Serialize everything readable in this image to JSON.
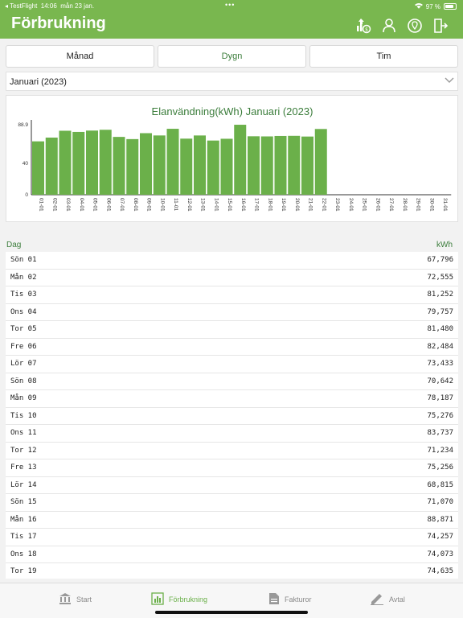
{
  "status": {
    "carrier": "◂ TestFlight",
    "time": "14:06",
    "date": "mån 23 jan.",
    "dots": "•••",
    "battery": "97 %"
  },
  "nav": {
    "title": "Förbrukning",
    "icons": [
      "upload-money-icon",
      "user-icon",
      "location-icon",
      "logout-icon"
    ]
  },
  "segments": [
    {
      "label": "Månad",
      "active": false
    },
    {
      "label": "Dygn",
      "active": true
    },
    {
      "label": "Tim",
      "active": false
    }
  ],
  "period_select": {
    "value": "Januari (2023)"
  },
  "table": {
    "day_header": "Dag",
    "unit_header": "kWh"
  },
  "rows": [
    {
      "day": "Sön 01",
      "value": "67,796"
    },
    {
      "day": "Mån 02",
      "value": "72,555"
    },
    {
      "day": "Tis 03",
      "value": "81,252"
    },
    {
      "day": "Ons 04",
      "value": "79,757"
    },
    {
      "day": "Tor 05",
      "value": "81,480"
    },
    {
      "day": "Fre 06",
      "value": "82,484"
    },
    {
      "day": "Lör 07",
      "value": "73,433"
    },
    {
      "day": "Sön 08",
      "value": "70,642"
    },
    {
      "day": "Mån 09",
      "value": "78,187"
    },
    {
      "day": "Tis 10",
      "value": "75,276"
    },
    {
      "day": "Ons 11",
      "value": "83,737"
    },
    {
      "day": "Tor 12",
      "value": "71,234"
    },
    {
      "day": "Fre 13",
      "value": "75,256"
    },
    {
      "day": "Lör 14",
      "value": "68,815"
    },
    {
      "day": "Sön 15",
      "value": "71,070"
    },
    {
      "day": "Mån 16",
      "value": "88,871"
    },
    {
      "day": "Tis 17",
      "value": "74,257"
    },
    {
      "day": "Ons 18",
      "value": "74,073"
    },
    {
      "day": "Tor 19",
      "value": "74,635"
    }
  ],
  "tabs": [
    {
      "label": "Start",
      "icon": "bank-icon",
      "active": false
    },
    {
      "label": "Förbrukning",
      "icon": "bar-chart-icon",
      "active": true
    },
    {
      "label": "Fakturor",
      "icon": "document-icon",
      "active": false
    },
    {
      "label": "Avtal",
      "icon": "pen-icon",
      "active": false
    }
  ],
  "colors": {
    "brand": "#79b74f",
    "bar": "#6bb04a",
    "accent_text": "#3b7d3b"
  },
  "chart_data": {
    "type": "bar",
    "title": "Elanvändning(kWh) Januari (2023)",
    "categories": [
      "01-01",
      "02-01",
      "03-01",
      "04-01",
      "05-01",
      "06-01",
      "07-01",
      "08-01",
      "09-01",
      "10-01",
      "11-01",
      "12-01",
      "13-01",
      "14-01",
      "15-01",
      "16-01",
      "17-01",
      "18-01",
      "19-01",
      "20-01",
      "21-01",
      "22-01",
      "23-01",
      "24-01",
      "25-01",
      "26-01",
      "27-01",
      "28-01",
      "29-01",
      "30-01",
      "31-01"
    ],
    "values": [
      67.796,
      72.555,
      81.252,
      79.757,
      81.48,
      82.484,
      73.433,
      70.642,
      78.187,
      75.276,
      83.737,
      71.234,
      75.256,
      68.815,
      71.07,
      88.871,
      74.257,
      74.073,
      74.635,
      74.8,
      73.9,
      83.5,
      0,
      0,
      0,
      0,
      0,
      0,
      0,
      0,
      0
    ],
    "ylim": [
      0,
      88.9
    ],
    "yticks": [
      "0",
      "40",
      "88.9"
    ],
    "grid": false
  }
}
